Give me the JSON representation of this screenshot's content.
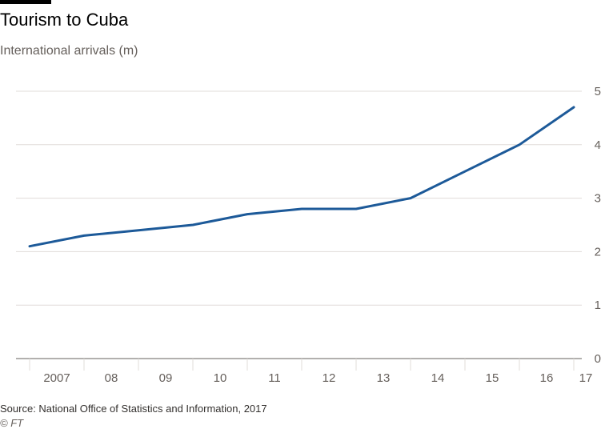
{
  "header": {
    "title": "Tourism to Cuba",
    "subtitle": "International arrivals (m)"
  },
  "footer": {
    "source": "Source: National Office of Statistics and Information, 2017",
    "credit": "© FT"
  },
  "colors": {
    "line": "#1d5a99",
    "grid": "#e0dcd8",
    "axis": "#66605c"
  },
  "chart_data": {
    "type": "line",
    "title": "Tourism to Cuba",
    "subtitle": "International arrivals (m)",
    "xlabel": "",
    "ylabel": "",
    "x_tick_labels": [
      "2007",
      "08",
      "09",
      "10",
      "11",
      "12",
      "13",
      "14",
      "15",
      "16",
      "17"
    ],
    "y_ticks": [
      0,
      1,
      2,
      3,
      4,
      5
    ],
    "ylim": [
      0,
      5
    ],
    "y_axis_side": "right",
    "grid": true,
    "series": [
      {
        "x": [
          2006.5,
          2007.5,
          2008.5,
          2009.5,
          2010.5,
          2011.5,
          2012.5,
          2013.5,
          2014.5,
          2015.5,
          2016.5
        ],
        "values": [
          2.1,
          2.3,
          2.4,
          2.5,
          2.7,
          2.8,
          2.8,
          3.0,
          3.5,
          4.0,
          4.7
        ]
      }
    ]
  }
}
